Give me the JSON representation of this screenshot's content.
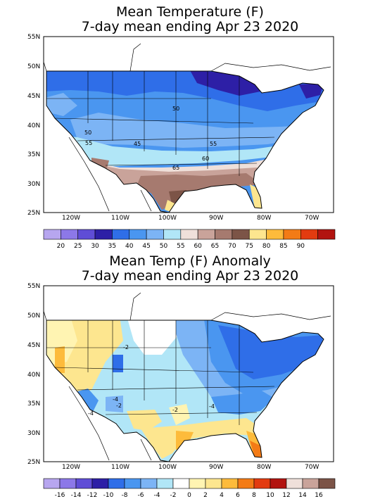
{
  "panels": [
    {
      "title_line1": "Mean Temperature (F)",
      "title_line2": "7-day mean ending Apr 23 2020",
      "lat_labels": [
        "55N",
        "50N",
        "45N",
        "40N",
        "35N",
        "30N",
        "25N"
      ],
      "lon_labels": [
        "120W",
        "110W",
        "100W",
        "90W",
        "80W",
        "70W"
      ],
      "contour_labels": [
        "50",
        "50",
        "45",
        "55",
        "55",
        "60",
        "65"
      ],
      "colorbar_colors": [
        "#b7a6ef",
        "#8c78e8",
        "#5f4dd6",
        "#2d1fa6",
        "#2f6ee8",
        "#4a96f0",
        "#7cb4f5",
        "#b1e6f7",
        "#efe0da",
        "#c9a39a",
        "#a67a6f",
        "#7c5447",
        "#fde68f",
        "#fdbb3b",
        "#f37b16",
        "#e33b10",
        "#b21410"
      ],
      "colorbar_labels": [
        "20",
        "25",
        "30",
        "35",
        "40",
        "45",
        "50",
        "55",
        "60",
        "65",
        "70",
        "75",
        "80",
        "85",
        "90"
      ]
    },
    {
      "title_line1": "Mean Temp (F) Anomaly",
      "title_line2": "7-day mean ending Apr 23 2020",
      "lat_labels": [
        "55N",
        "50N",
        "45N",
        "40N",
        "35N",
        "30N",
        "25N"
      ],
      "lon_labels": [
        "120W",
        "110W",
        "100W",
        "90W",
        "80W",
        "70W"
      ],
      "contour_labels": [
        "-4",
        "-2",
        "-2",
        "-4",
        "-4",
        "-2"
      ],
      "colorbar_colors": [
        "#b7a6ef",
        "#8c78e8",
        "#5f4dd6",
        "#2d1fa6",
        "#2f6ee8",
        "#4a96f0",
        "#7cb4f5",
        "#b1e6f7",
        "#ffffff",
        "#fff4b2",
        "#fde68f",
        "#fdbb3b",
        "#f37b16",
        "#e33b10",
        "#b21410",
        "#efe0da",
        "#c9a39a",
        "#7c5447"
      ],
      "colorbar_labels": [
        "-16",
        "-14",
        "-12",
        "-10",
        "-8",
        "-6",
        "-4",
        "-2",
        "0",
        "2",
        "4",
        "6",
        "8",
        "10",
        "12",
        "14",
        "16"
      ]
    }
  ]
}
